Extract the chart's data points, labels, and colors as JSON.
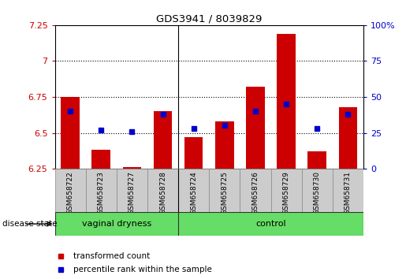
{
  "title": "GDS3941 / 8039829",
  "samples": [
    "GSM658722",
    "GSM658723",
    "GSM658727",
    "GSM658728",
    "GSM658724",
    "GSM658725",
    "GSM658726",
    "GSM658729",
    "GSM658730",
    "GSM658731"
  ],
  "transformed_count": [
    6.75,
    6.38,
    6.26,
    6.65,
    6.47,
    6.58,
    6.82,
    7.19,
    6.37,
    6.68
  ],
  "percentile_rank": [
    40,
    27,
    26,
    38,
    28,
    30,
    40,
    45,
    28,
    38
  ],
  "ylim_left": [
    6.25,
    7.25
  ],
  "ylim_right": [
    0,
    100
  ],
  "yticks_left": [
    6.25,
    6.5,
    6.75,
    7.0,
    7.25
  ],
  "ytick_labels_left": [
    "6.25",
    "6.5",
    "6.75",
    "7",
    "7.25"
  ],
  "yticks_right": [
    0,
    25,
    50,
    75,
    100
  ],
  "ytick_labels_right": [
    "0",
    "25",
    "50",
    "75",
    "100%"
  ],
  "groups": [
    {
      "label": "vaginal dryness",
      "start": 0,
      "end": 4
    },
    {
      "label": "control",
      "start": 4,
      "end": 10
    }
  ],
  "group_label_prefix": "disease state",
  "bar_color": "#CC0000",
  "marker_color": "#0000CC",
  "bar_width": 0.6,
  "baseline": 6.25,
  "grid_color": "black",
  "tick_label_color_left": "#CC0000",
  "tick_label_color_right": "#0000CC",
  "green_color": "#66DD66",
  "gray_color": "#CCCCCC",
  "legend_items": [
    {
      "label": "transformed count",
      "color": "#CC0000"
    },
    {
      "label": "percentile rank within the sample",
      "color": "#0000CC"
    }
  ]
}
